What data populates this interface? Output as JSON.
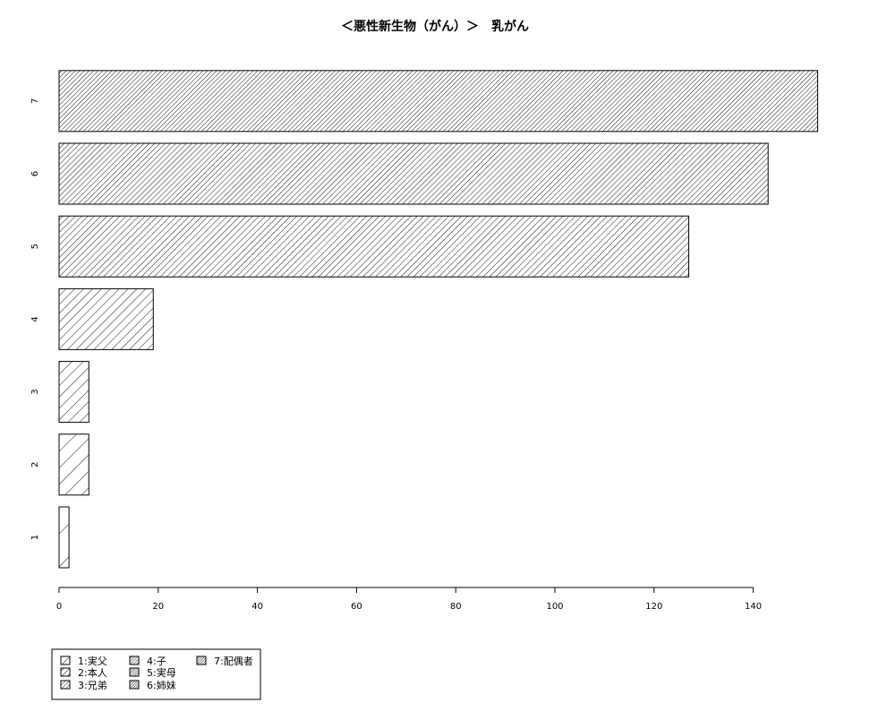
{
  "chart_data": {
    "type": "bar",
    "orientation": "horizontal",
    "title": "＜悪性新生物（がん）＞　乳がん",
    "xlabel": "",
    "ylabel": "",
    "categories": [
      "1",
      "2",
      "3",
      "4",
      "5",
      "6",
      "7"
    ],
    "values": [
      2,
      6,
      6,
      19,
      127,
      143,
      153
    ],
    "x_ticks": [
      0,
      20,
      40,
      60,
      80,
      100,
      120,
      140
    ],
    "xlim": [
      0,
      153
    ],
    "grid": false,
    "legend_position": "bottom-left",
    "legend": [
      {
        "label": "1:実父"
      },
      {
        "label": "2:本人"
      },
      {
        "label": "3:兄弟"
      },
      {
        "label": "4:子"
      },
      {
        "label": "5:実母"
      },
      {
        "label": "6:姉妹"
      },
      {
        "label": "7:配偶者"
      }
    ]
  }
}
